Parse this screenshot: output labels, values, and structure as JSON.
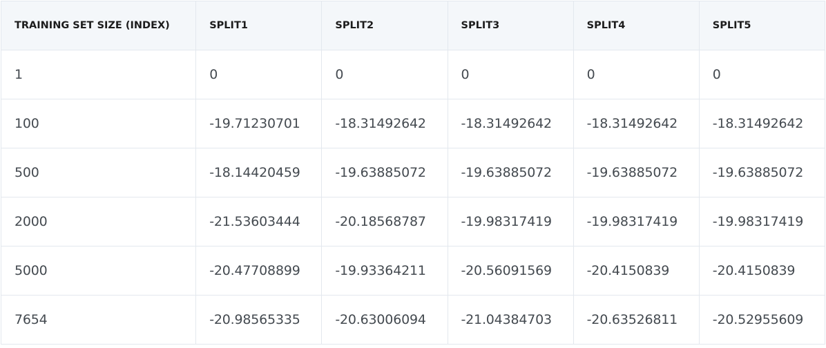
{
  "chart_data": {
    "type": "table",
    "columns": [
      "TRAINING SET SIZE (INDEX)",
      "SPLIT1",
      "SPLIT2",
      "SPLIT3",
      "SPLIT4",
      "SPLIT5"
    ],
    "rows": [
      [
        "1",
        "0",
        "0",
        "0",
        "0",
        "0"
      ],
      [
        "100",
        "-19.71230701",
        "-18.31492642",
        "-18.31492642",
        "-18.31492642",
        "-18.31492642"
      ],
      [
        "500",
        "-18.14420459",
        "-19.63885072",
        "-19.63885072",
        "-19.63885072",
        "-19.63885072"
      ],
      [
        "2000",
        "-21.53603444",
        "-20.18568787",
        "-19.98317419",
        "-19.98317419",
        "-19.98317419"
      ],
      [
        "5000",
        "-20.47708899",
        "-19.93364211",
        "-20.56091569",
        "-20.4150839",
        "-20.4150839"
      ],
      [
        "7654",
        "-20.98565335",
        "-20.63006094",
        "-21.04384703",
        "-20.63526811",
        "-20.52955609"
      ]
    ]
  }
}
